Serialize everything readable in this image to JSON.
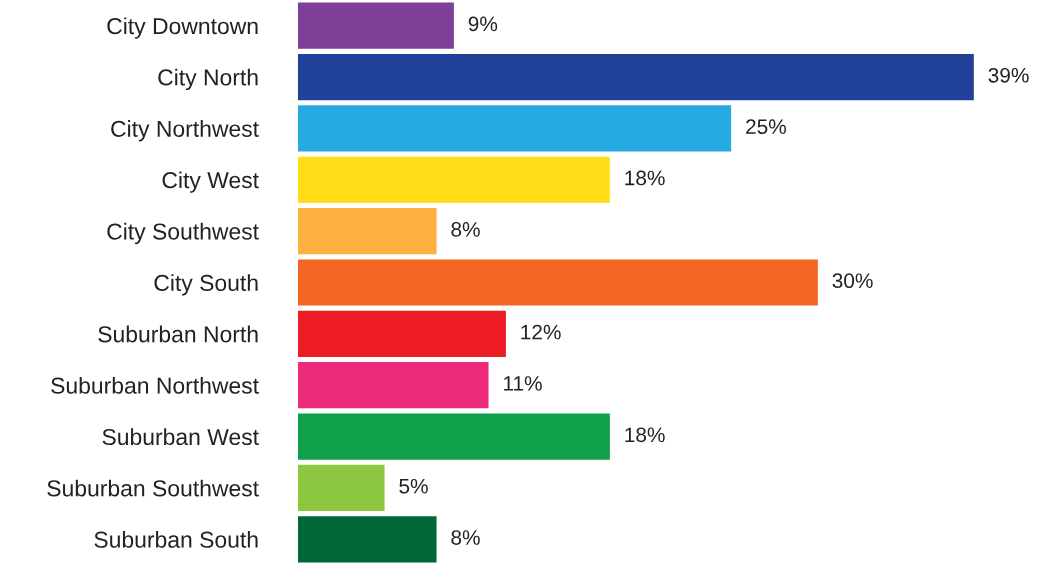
{
  "chart_data": {
    "type": "bar",
    "orientation": "horizontal",
    "value_labels": [
      "9%",
      "39%",
      "25%",
      "18%",
      "8%",
      "30%",
      "12%",
      "11%",
      "18%",
      "5%",
      "8%"
    ],
    "categories": [
      "City Downtown",
      "City North",
      "City Northwest",
      "City West",
      "City Southwest",
      "City South",
      "Suburban North",
      "Suburban Northwest",
      "Suburban West",
      "Suburban Southwest",
      "Suburban South"
    ],
    "values": [
      9,
      39,
      25,
      18,
      8,
      30,
      12,
      11,
      18,
      5,
      8
    ],
    "colors": [
      "#7e3f98",
      "#21409a",
      "#27aae1",
      "#ffde17",
      "#fbb040",
      "#f26522",
      "#ed1c24",
      "#ee2a7b",
      "#0ea04b",
      "#8dc63f",
      "#006838"
    ]
  }
}
